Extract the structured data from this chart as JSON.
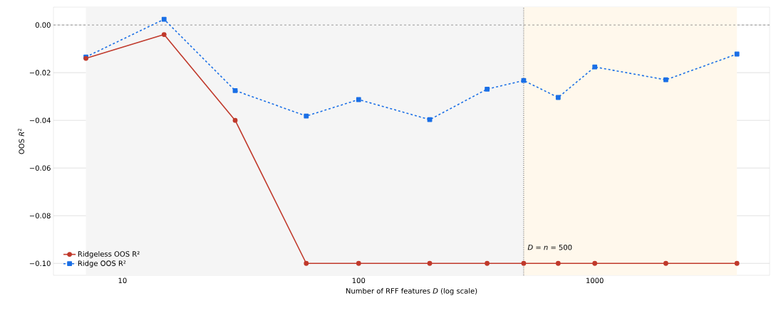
{
  "chart_data": {
    "type": "line",
    "xlabel": "Number of RFF features *D* (log scale)",
    "ylabel": "OOS *R*$^{2}$",
    "x": [
      7,
      15,
      30,
      60,
      100,
      200,
      350,
      500,
      700,
      1000,
      2000,
      4000
    ],
    "series": [
      {
        "name": "Ridgeless OOS R²",
        "color": "#c0392b",
        "marker": "circle",
        "line_style": "solid",
        "values": [
          -0.014,
          -0.004,
          -0.04,
          -0.1,
          -0.1,
          -0.1,
          -0.1,
          -0.1,
          -0.1,
          -0.1,
          -0.1,
          -0.1
        ]
      },
      {
        "name": "Ridge OOS R²",
        "color": "#1a6fe6",
        "marker": "square",
        "line_style": "dashed",
        "values": [
          -0.0134,
          0.0024,
          -0.0275,
          -0.0382,
          -0.0313,
          -0.0397,
          -0.0269,
          -0.0233,
          -0.0304,
          -0.0176,
          -0.023,
          -0.0122
        ]
      }
    ],
    "log": "x",
    "xlim": [
      5.1,
      5500
    ],
    "xticks": [
      10,
      100,
      1000
    ],
    "ylim": [
      -0.105,
      0.0075
    ],
    "yticks": [
      {
        "value": -0.1,
        "label": "−0.10"
      },
      {
        "value": -0.08,
        "label": "−0.08"
      },
      {
        "value": -0.06,
        "label": "−0.06"
      },
      {
        "value": -0.04,
        "label": "−0.04"
      },
      {
        "value": -0.02,
        "label": "−0.02"
      },
      {
        "value": 0,
        "label": "0.00"
      }
    ],
    "bands": [
      {
        "axis": "x",
        "from": 7,
        "to": 500,
        "color": "#f5f5f5"
      },
      {
        "axis": "x",
        "from": 500,
        "to": 4000,
        "color": "#fff8ec"
      }
    ],
    "ref_lines": [
      {
        "axis": "y",
        "value": 0,
        "color": "#808080",
        "line_style": "dashed"
      },
      {
        "axis": "x",
        "value": 500,
        "label": "*D* = *n* = 500",
        "color": "#000000",
        "line_style": "dotted"
      }
    ],
    "grid": true,
    "legend": "bottom left"
  }
}
